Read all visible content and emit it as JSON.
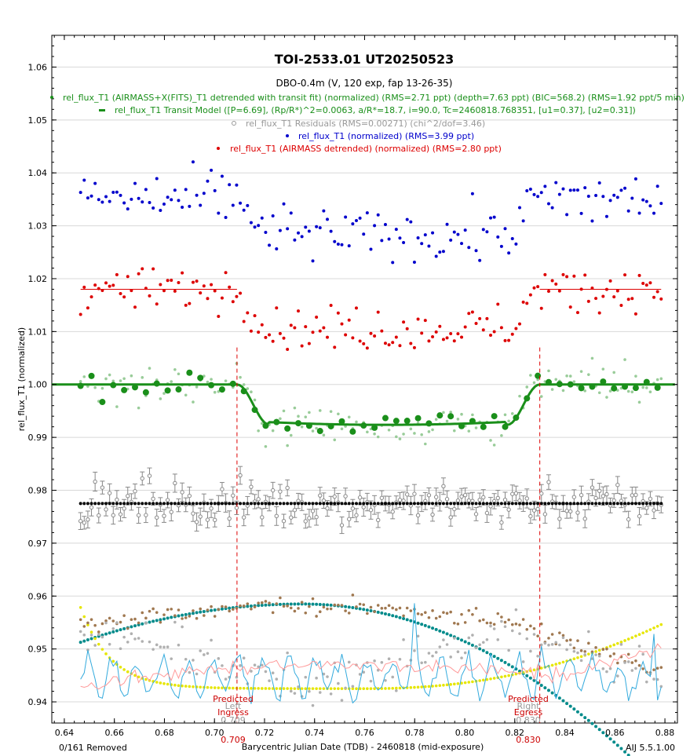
{
  "chart_data": {
    "type": "scatter",
    "title": "TOI-2533.01  UT20250523",
    "subtitle": "DBO-0.4m (V, 120 exp, fap 13-26-35)",
    "xlabel": "Barycentric Julian Date (TDB) - 2460818 (mid-exposure)",
    "ylabel": "rel_flux_T1 (normalized)",
    "xlim": [
      0.635,
      0.885
    ],
    "ylim": [
      0.936,
      1.066
    ],
    "x_ticks": [
      0.64,
      0.66,
      0.68,
      0.7,
      0.72,
      0.74,
      0.76,
      0.78,
      0.8,
      0.82,
      0.84,
      0.86,
      0.88
    ],
    "y_ticks": [
      0.94,
      0.95,
      0.96,
      0.97,
      0.98,
      0.99,
      1.0,
      1.01,
      1.02,
      1.03,
      1.04,
      1.05,
      1.06
    ],
    "footer_left": "0/161 Removed",
    "footer_right": "AIJ 5.5.1.00",
    "legend": [
      {
        "text": "rel_flux_T1 (AIRMASS+X(FITS)_T1 detrended with transit fit) (normalized) (RMS=2.71 ppt) (depth=7.63 ppt) (BIC=568.2) (RMS=1.92 ppt/5 min)",
        "color": "#1a8f1a"
      },
      {
        "text": "rel_flux_T1 Transit Model ([P=6.69], (Rp/R*)^2=0.0063, a/R*=18.7, i=90.0, Tc=2460818.768351, [u1=0.37], [u2=0.31])",
        "color": "#1a8f1a"
      },
      {
        "text": "rel_flux_T1 Residuals (RMS=0.00271) (chi^2/dof=3.46)",
        "color": "#999999"
      },
      {
        "text": "rel_flux_T1 (normalized) (RMS=3.99 ppt)",
        "color": "#0000cc"
      },
      {
        "text": "rel_flux_T1 (AIRMASS detrended) (normalized) (RMS=2.80 ppt)",
        "color": "#dd0000"
      }
    ],
    "markers": {
      "ingress": {
        "label_top": "Predicted",
        "label_mid": "Left",
        "label_bot": "Ingress",
        "value_gray": "0.709",
        "value_red": "0.709",
        "x": 0.709
      },
      "egress": {
        "label_top": "Predicted",
        "label_mid": "Right",
        "label_bot": "Egress",
        "value_gray": "0.830",
        "value_red": "0.830",
        "x": 0.83
      }
    },
    "transit_model": {
      "baseline": 1.0,
      "depth": 0.00763,
      "ingress_start": 0.709,
      "ingress_end": 0.722,
      "egress_start": 0.817,
      "egress_end": 0.83,
      "tc": 0.768351
    },
    "residual_offset": 0.9775,
    "blue_offset": 1.035,
    "red_offset": 1.018,
    "n_points": 161,
    "x_start": 0.6465,
    "x_end": 0.8785,
    "colors": {
      "blue": "#0000cc",
      "red": "#dd0000",
      "green": "#1a8f1a",
      "light_green": "#99cc99",
      "gray": "#888888",
      "black": "#000000",
      "teal": "#008b8b",
      "yellow": "#e6e600",
      "brown": "#a07850",
      "silver": "#b0b0b0",
      "sky": "#33aadd",
      "pink": "#ff9999"
    }
  }
}
